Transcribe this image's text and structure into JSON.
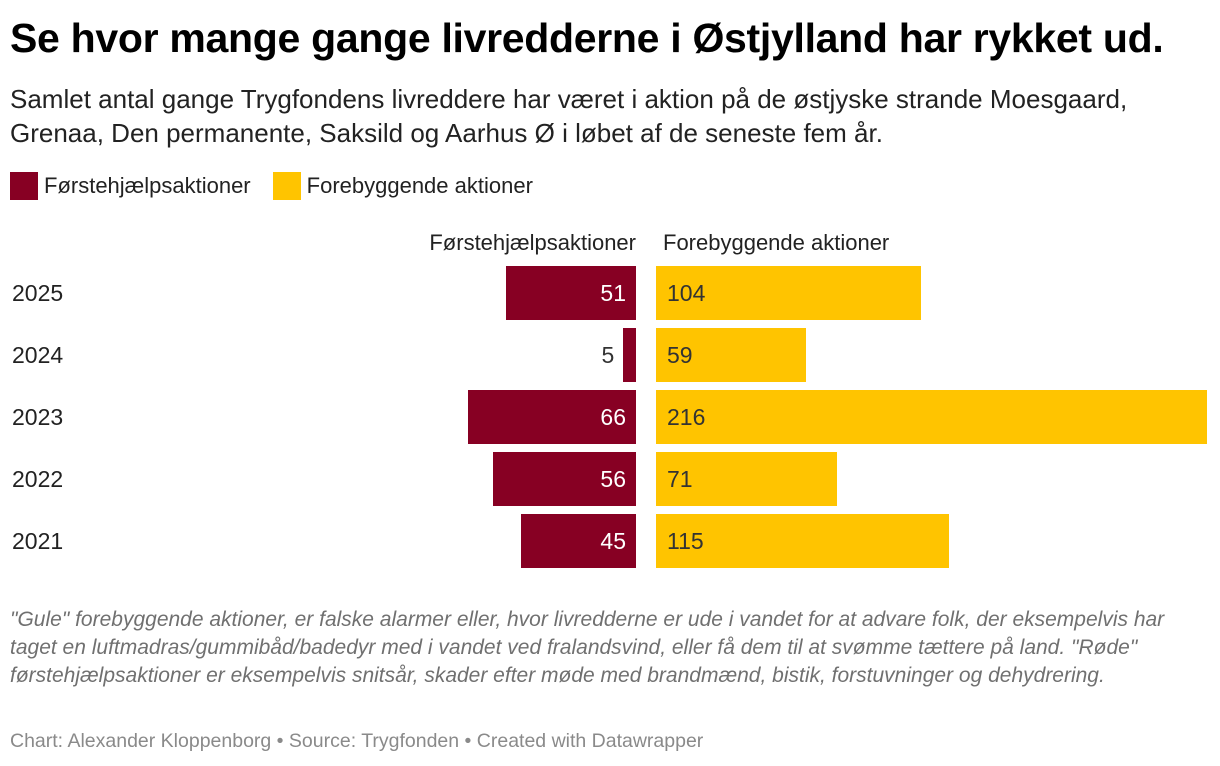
{
  "header": {
    "title": "Se hvor mange gange livredderne i Østjylland har rykket ud.",
    "subtitle": "Samlet antal gange Trygfondens livreddere har været i aktion på de østjyske strande Moesgaard, Grenaa, Den permanente, Saksild og Aarhus Ø i løbet af de seneste fem år."
  },
  "colors": {
    "first_aid": "#870023",
    "preventive": "#ffc400",
    "label_on_dark": "#ffffff",
    "label_on_light": "#333333"
  },
  "chart_data": {
    "type": "bar",
    "orientation": "horizontal-split",
    "title": "Se hvor mange gange livredderne i Østjylland har rykket ud.",
    "categories": [
      "2025",
      "2024",
      "2023",
      "2022",
      "2021"
    ],
    "series": [
      {
        "name": "Førstehjælpsaktioner",
        "values": [
          51,
          5,
          66,
          56,
          45
        ]
      },
      {
        "name": "Forebyggende aktioner",
        "values": [
          104,
          59,
          216,
          71,
          115
        ]
      }
    ],
    "legend": [
      "Førstehjælpsaktioner",
      "Forebyggende aktioner"
    ],
    "column_headers": [
      "Førstehjælpsaktioner",
      "Forebyggende aktioner"
    ]
  },
  "notes": "\"Gule\" forebyggende aktioner, er falske alarmer eller, hvor livredderne er ude i vandet for at advare folk, der eksempelvis har taget en luftmadras/gummibåd/badedyr med i vandet ved fralandsvind, eller få dem til at svømme tættere på land. \"Røde\" førstehjælpsaktioner er eksempelvis snitsår, skader efter møde med brandmænd, bistik, forstuvninger og dehydrering.",
  "footer": "Chart: Alexander Kloppenborg • Source: Trygfonden • Created with Datawrapper"
}
